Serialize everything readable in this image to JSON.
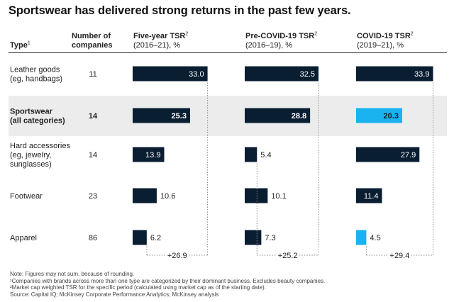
{
  "title": "Sportswear has delivered strong returns in the past few years.",
  "headers": {
    "type": "Type",
    "type_sup": "1",
    "count_line1": "Number of",
    "count_line2": "companies",
    "col1_title": "Five-year TSR",
    "col1_sup": "2",
    "col1_period": "(2016–21), %",
    "col2_title": "Pre-COVID-19 TSR",
    "col2_sup": "2",
    "col2_period": "(2016–19), %",
    "col3_title": "COVID-19 TSR",
    "col3_sup": "2",
    "col3_period": "(2019–21), %"
  },
  "rows": [
    {
      "type_lines": [
        "Leather goods",
        "(eg, handbags)"
      ],
      "count": "11",
      "bold": false,
      "highlight": false
    },
    {
      "type_lines": [
        "Sportswear",
        "(all categories)"
      ],
      "count": "14",
      "bold": true,
      "highlight": true
    },
    {
      "type_lines": [
        "Hard accessories",
        "(eg, jewelry,",
        "sunglasses)"
      ],
      "count": "14",
      "bold": false,
      "highlight": false
    },
    {
      "type_lines": [
        "Footwear"
      ],
      "count": "23",
      "bold": false,
      "highlight": false
    },
    {
      "type_lines": [
        "Apparel"
      ],
      "count": "86",
      "bold": false,
      "highlight": false
    }
  ],
  "chart_data": {
    "type": "bar",
    "orientation": "horizontal",
    "title": "Sportswear has delivered strong returns in the past few years.",
    "categories": [
      "Leather goods (eg, handbags)",
      "Sportswear (all categories)",
      "Hard accessories (eg, jewelry, sunglasses)",
      "Footwear",
      "Apparel"
    ],
    "xlim": [
      0,
      36
    ],
    "series": [
      {
        "name": "Five-year TSR (2016–21), %",
        "values": [
          33.0,
          25.3,
          13.9,
          10.6,
          6.2
        ],
        "labels": [
          "33.0",
          "25.3",
          "13.9",
          "10.6",
          "6.2"
        ],
        "spread_label": "+26.9"
      },
      {
        "name": "Pre-COVID-19 TSR (2016–19), %",
        "values": [
          32.5,
          28.8,
          5.4,
          10.1,
          7.3
        ],
        "labels": [
          "32.5",
          "28.8",
          "5.4",
          "10.1",
          "7.3"
        ],
        "spread_label": "+25.2"
      },
      {
        "name": "COVID-19 TSR (2019–21), %",
        "values": [
          33.9,
          20.3,
          27.9,
          11.4,
          4.5
        ],
        "labels": [
          "33.9",
          "20.3",
          "27.9",
          "11.4",
          "4.5"
        ],
        "spread_label": "+29.4"
      }
    ],
    "highlight": [
      {
        "series": 2,
        "index": 1
      },
      {
        "series": 2,
        "index": 4
      }
    ]
  },
  "colors": {
    "bar": "#0a1e32",
    "highlight": "#1ab2ef",
    "band": "#ececec",
    "spread": "#888888"
  },
  "notes": [
    "Note: Figures may not sum, because of rounding.",
    "¹Companies with brands across more than one type are categorized by their dominant business. Excludes beauty companies.",
    "²Market cap weighted TSR for the specific period (calculated using market cap as of the starting date).",
    "Source: Capital IQ; McKinsey Corporate Performance Analytics; McKinsey analysis"
  ]
}
